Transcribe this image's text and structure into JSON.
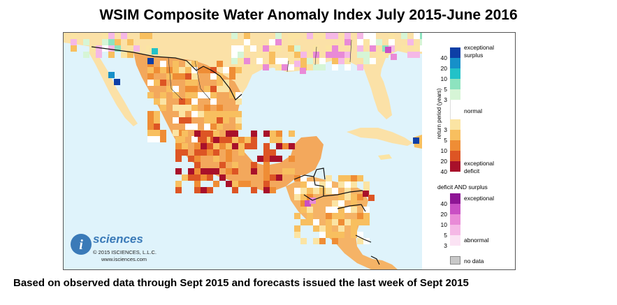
{
  "title": "WSIM Composite Water Anomaly Index July 2015-June 2016",
  "footer": "Based on observed data through Sept 2015 and forecasts issued the last week of Sept 2015",
  "logo": {
    "mark": "i",
    "name": "sciences",
    "copyright": "© 2015 ISCIENCES, L.L.C.",
    "url": "www.isciences.com"
  },
  "legend": {
    "axis_label": "return period (years)",
    "surplus_label_1": "exceptional",
    "surplus_label_2": "surplus",
    "normal_label": "normal",
    "deficit_label_1": "exceptional",
    "deficit_label_2": "deficit",
    "both_heading": "deficit AND surplus",
    "both_exceptional": "exceptional",
    "both_abnormal": "abnormal",
    "no_data": "no data",
    "surplus_ticks": [
      "40",
      "20",
      "10",
      "5",
      "3"
    ],
    "deficit_ticks": [
      "3",
      "5",
      "10",
      "20",
      "40"
    ],
    "both_ticks": [
      "40",
      "20",
      "10",
      "5",
      "3"
    ]
  },
  "colors": {
    "ocean": "#dff3fb",
    "land": "#fbe1a7",
    "surplus": [
      "#0d3fa6",
      "#1690c9",
      "#22c2c8",
      "#8de3bf",
      "#d6f5d6"
    ],
    "deficit": [
      "#fbe4a3",
      "#f8bf5f",
      "#ef8d35",
      "#dd5524",
      "#a8102a"
    ],
    "both": [
      "#8e1595",
      "#c94fc4",
      "#e98ad7",
      "#f5b8e6",
      "#fbe3f4"
    ],
    "nodata": "#c8c8c8"
  }
}
